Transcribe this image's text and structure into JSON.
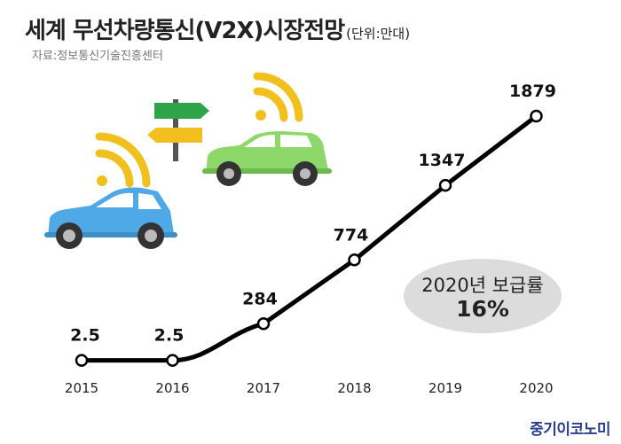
{
  "header": {
    "title": "세계 무선차량통신(V2X)시장전망",
    "unit": "(단위:만대)",
    "source": "자료:정보통신기술진흥센터"
  },
  "callout": {
    "line1": "2020년 보급률",
    "line2": "16%"
  },
  "brand": {
    "logo": "중기이코노미"
  },
  "colors": {
    "line": "#000000",
    "car_blue": "#4fa9e6",
    "car_green": "#8ed76a",
    "wifi": "#f2c01e",
    "sign_green": "#2fa34a",
    "sign_yellow": "#f2c01e"
  },
  "icons": [
    "wifi-signal-icon",
    "blue-car-icon",
    "green-car-icon",
    "direction-sign-icon"
  ],
  "chart_data": {
    "type": "line",
    "x": [
      "2015",
      "2016",
      "2017",
      "2018",
      "2019",
      "2020"
    ],
    "values": [
      2.5,
      2.5,
      284,
      774,
      1347,
      1879
    ],
    "labels": [
      "2.5",
      "2.5",
      "284",
      "774",
      "1347",
      "1879"
    ],
    "ylim": [
      0,
      1879
    ],
    "grid": false
  }
}
